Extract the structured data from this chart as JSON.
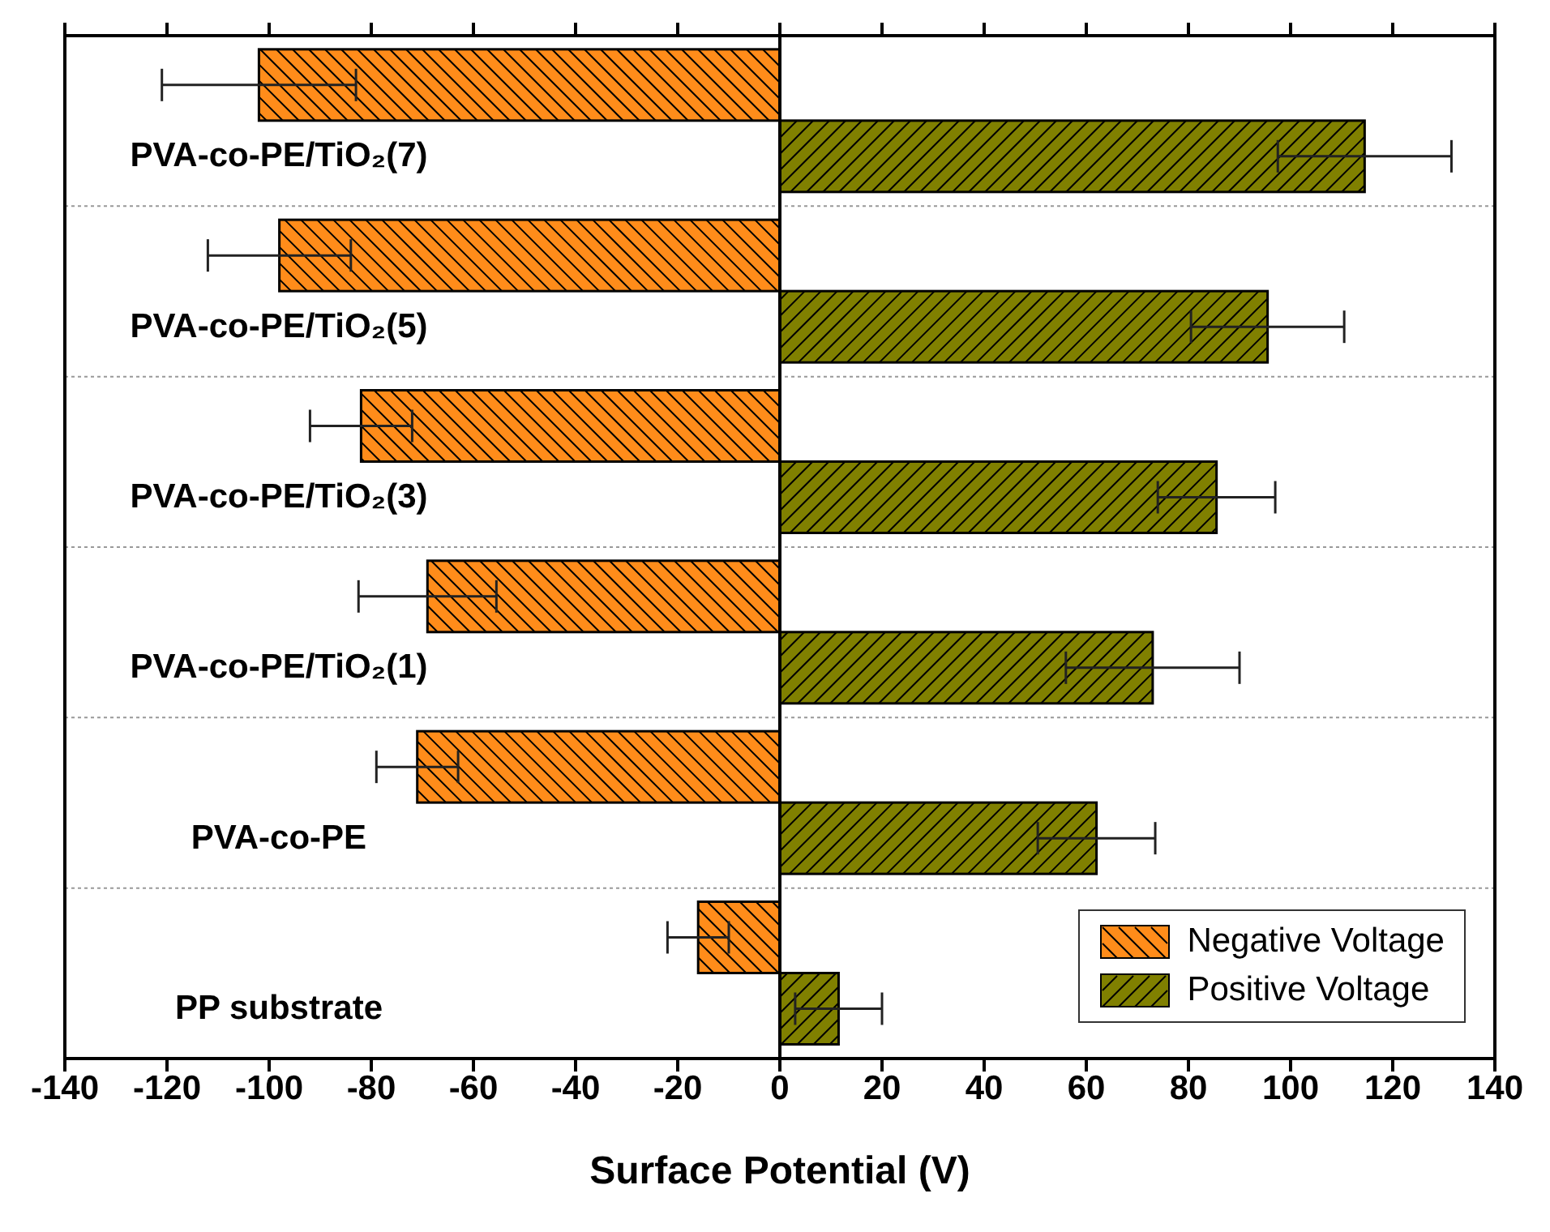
{
  "chart_data": {
    "type": "bar",
    "orientation": "horizontal",
    "xlabel": "Surface Potential (V)",
    "categories": [
      "PVA-co-PE/TiO₂(7)",
      "PVA-co-PE/TiO₂(5)",
      "PVA-co-PE/TiO₂(3)",
      "PVA-co-PE/TiO₂(1)",
      "PVA-co-PE",
      "PP substrate"
    ],
    "series": [
      {
        "name": "Negative Voltage",
        "color": "#ff8c1a",
        "values": [
          -102,
          -98,
          -82,
          -69,
          -71,
          -16
        ],
        "errors": [
          19,
          14,
          10,
          13.5,
          8,
          6
        ]
      },
      {
        "name": "Positive Voltage",
        "color": "#808000",
        "values": [
          114.5,
          95.5,
          85.5,
          73,
          62,
          11.5
        ],
        "errors": [
          17,
          15,
          11.5,
          17,
          11.5,
          8.5
        ]
      }
    ],
    "xlim": [
      -140,
      140
    ],
    "xticks": [
      -140,
      -120,
      -100,
      -80,
      -60,
      -40,
      -20,
      0,
      20,
      40,
      60,
      80,
      100,
      120,
      140
    ],
    "ref_lines": [
      {
        "axis": "x",
        "value": 0
      }
    ],
    "grid": "y",
    "legend": "bottom right"
  }
}
